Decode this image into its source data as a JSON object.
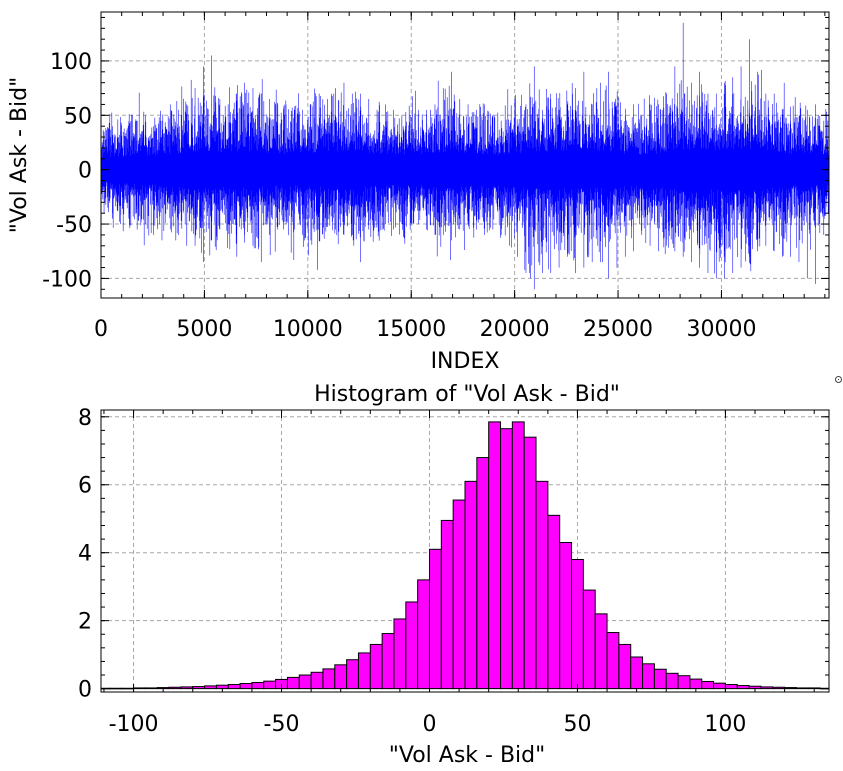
{
  "chart_data": [
    {
      "type": "line",
      "title": "",
      "xlabel": "INDEX",
      "ylabel": "\"Vol Ask - Bid\"",
      "xlim": [
        0,
        35200
      ],
      "ylim": [
        -118,
        145
      ],
      "xticks": [
        0,
        5000,
        10000,
        15000,
        20000,
        25000,
        30000
      ],
      "xtick_labels": [
        "0",
        "5000",
        "10000",
        "15000",
        "20000",
        "25000",
        "30000"
      ],
      "yticks": [
        -100,
        -50,
        0,
        50,
        100
      ],
      "ytick_labels": [
        "-100",
        "-50",
        "0",
        "50",
        "100"
      ],
      "grid": true,
      "line_color": "#0000ff",
      "envelope_step": 400,
      "envelope_x": [
        0,
        400,
        800,
        1200,
        1600,
        2000,
        2400,
        2800,
        3200,
        3600,
        4000,
        4400,
        4800,
        5200,
        5600,
        6000,
        6400,
        6800,
        7200,
        7600,
        8000,
        8400,
        8800,
        9200,
        9600,
        10000,
        10400,
        10800,
        11200,
        11600,
        12000,
        12400,
        12800,
        13200,
        13600,
        14000,
        14400,
        14800,
        15200,
        15600,
        16000,
        16400,
        16800,
        17200,
        17600,
        18000,
        18400,
        18800,
        19200,
        19600,
        20000,
        20400,
        20800,
        21200,
        21600,
        22000,
        22400,
        22800,
        23200,
        23600,
        24000,
        24400,
        24800,
        25200,
        25600,
        26000,
        26400,
        26800,
        27200,
        27600,
        28000,
        28400,
        28800,
        29200,
        29600,
        30000,
        30400,
        30800,
        31200,
        31600,
        32000,
        32400,
        32800,
        33200,
        33600,
        34000,
        34400,
        34800
      ],
      "envelope_max": [
        35,
        40,
        35,
        40,
        45,
        50,
        40,
        45,
        60,
        55,
        60,
        75,
        95,
        105,
        65,
        60,
        70,
        80,
        75,
        70,
        65,
        60,
        60,
        55,
        55,
        60,
        70,
        65,
        75,
        80,
        70,
        70,
        65,
        55,
        60,
        55,
        50,
        50,
        55,
        55,
        60,
        75,
        90,
        65,
        60,
        55,
        60,
        50,
        45,
        40,
        40,
        60,
        95,
        55,
        65,
        55,
        60,
        75,
        90,
        60,
        80,
        90,
        55,
        50,
        60,
        50,
        60,
        60,
        70,
        95,
        135,
        80,
        90,
        70,
        70,
        80,
        85,
        95,
        120,
        90,
        70,
        70,
        55,
        45,
        40,
        55,
        60,
        40
      ],
      "envelope_min": [
        -40,
        -45,
        -50,
        -45,
        -55,
        -50,
        -60,
        -65,
        -55,
        -60,
        -70,
        -70,
        -85,
        -65,
        -55,
        -50,
        -60,
        -60,
        -70,
        -85,
        -60,
        -55,
        -50,
        -55,
        -60,
        -65,
        -55,
        -50,
        -55,
        -60,
        -60,
        -85,
        -55,
        -50,
        -50,
        -55,
        -50,
        -55,
        -50,
        -55,
        -60,
        -60,
        -65,
        -55,
        -50,
        -55,
        -60,
        -55,
        -60,
        -70,
        -80,
        -95,
        -110,
        -95,
        -95,
        -90,
        -80,
        -95,
        -90,
        -85,
        -85,
        -100,
        -90,
        -80,
        -75,
        -60,
        -70,
        -75,
        -70,
        -75,
        -80,
        -85,
        -90,
        -95,
        -100,
        -100,
        -95,
        -90,
        -80,
        -75,
        -70,
        -75,
        -80,
        -80,
        -85,
        -100,
        -105,
        -60
      ],
      "typical_half_band": [
        18,
        20,
        20,
        20,
        22,
        22,
        22,
        24,
        24,
        26,
        28,
        30,
        30,
        30,
        28,
        28,
        28,
        30,
        30,
        30,
        28,
        26,
        26,
        26,
        26,
        28,
        28,
        28,
        30,
        30,
        30,
        30,
        28,
        26,
        26,
        26,
        24,
        24,
        24,
        24,
        26,
        28,
        28,
        28,
        26,
        26,
        26,
        24,
        24,
        24,
        26,
        28,
        32,
        30,
        30,
        30,
        30,
        32,
        32,
        30,
        30,
        30,
        28,
        26,
        26,
        24,
        26,
        26,
        28,
        30,
        34,
        32,
        34,
        32,
        32,
        34,
        34,
        34,
        34,
        32,
        30,
        30,
        28,
        26,
        24,
        26,
        26,
        24
      ]
    },
    {
      "type": "bar",
      "title": "Histogram of \"Vol Ask - Bid\"",
      "xlabel": "\"Vol Ask - Bid\"",
      "ylabel": "",
      "xlim": [
        -111,
        135
      ],
      "ylim": [
        -0.1,
        8.2
      ],
      "xticks": [
        -100,
        -50,
        0,
        50,
        100
      ],
      "xtick_labels": [
        "-100",
        "-50",
        "0",
        "50",
        "100"
      ],
      "yticks": [
        0,
        2,
        4,
        6,
        8
      ],
      "ytick_labels": [
        "0",
        "2",
        "4",
        "6",
        "8"
      ],
      "grid": true,
      "bar_color": "#ff00ff",
      "bin_width": 4,
      "bin_edges_start": -112,
      "values": [
        0.01,
        0.01,
        0.01,
        0.02,
        0.02,
        0.03,
        0.04,
        0.05,
        0.06,
        0.08,
        0.1,
        0.12,
        0.15,
        0.18,
        0.22,
        0.27,
        0.33,
        0.4,
        0.48,
        0.58,
        0.7,
        0.85,
        1.05,
        1.3,
        1.62,
        2.05,
        2.55,
        3.2,
        4.1,
        4.95,
        5.55,
        6.1,
        6.8,
        7.85,
        7.65,
        7.85,
        7.4,
        6.1,
        5.1,
        4.3,
        3.8,
        2.9,
        2.2,
        1.65,
        1.3,
        0.93,
        0.73,
        0.57,
        0.45,
        0.38,
        0.28,
        0.21,
        0.16,
        0.12,
        0.09,
        0.07,
        0.05,
        0.04,
        0.03,
        0.02,
        0.02,
        0.01
      ]
    }
  ]
}
